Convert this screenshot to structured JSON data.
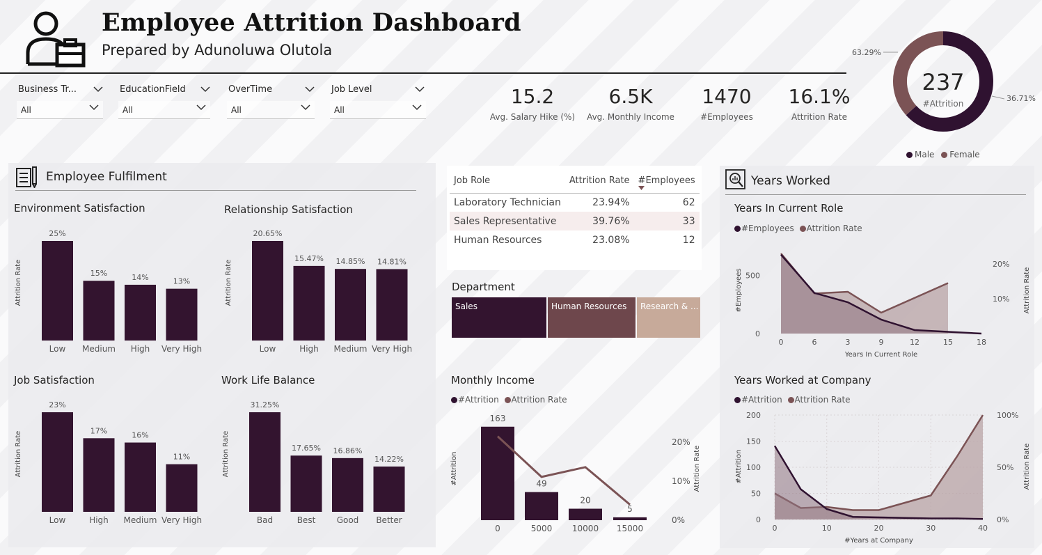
{
  "header": {
    "title": "Employee Attrition Dashboard",
    "subtitle": "Prepared by Adunoluwa Olutola"
  },
  "filters": [
    {
      "label": "Business Tr...",
      "value": "All"
    },
    {
      "label": "EducationField",
      "value": "All"
    },
    {
      "label": "OverTime",
      "value": "All"
    },
    {
      "label": "Job Level",
      "value": "All"
    }
  ],
  "kpis": [
    {
      "value": "15.2",
      "caption": "Avg. Salary Hike (%)"
    },
    {
      "value": "6.5K",
      "caption": "Avg. Monthly Income"
    },
    {
      "value": "1470",
      "caption": "#Employees"
    },
    {
      "value": "16.1%",
      "caption": "Attrition Rate"
    }
  ],
  "donut": {
    "center_value": "237",
    "center_label": "#Attrition",
    "legend": [
      {
        "name": "Male",
        "color": "#2f1230"
      },
      {
        "name": "Female",
        "color": "#7b5355"
      }
    ],
    "slices": [
      {
        "name": "Male",
        "value": 63.29,
        "label": "63.29%"
      },
      {
        "name": "Female",
        "value": 36.71,
        "label": "36.71%"
      }
    ]
  },
  "sections": {
    "fulfilment": "Employee Fulfilment",
    "years_worked": "Years Worked"
  },
  "colors": {
    "bar": "#33142f",
    "primary_line": "#2f1230",
    "secondary_line": "#7b5355",
    "area_primary": "#8f7582",
    "area_secondary": "#b8a3a6",
    "dept_research": "#c7aa9a"
  },
  "satisfaction_charts": [
    {
      "title": "Environment Satisfaction",
      "ylabel": "Attrition Rate",
      "categories": [
        "Low",
        "Medium",
        "High",
        "Very High"
      ],
      "values": [
        25,
        15,
        14,
        13
      ],
      "labels": [
        "25%",
        "15%",
        "14%",
        "13%"
      ]
    },
    {
      "title": "Relationship Satisfaction",
      "ylabel": "Attrition Rate",
      "categories": [
        "Low",
        "High",
        "Medium",
        "Very High"
      ],
      "values": [
        20.65,
        15.47,
        14.85,
        14.81
      ],
      "labels": [
        "20.65%",
        "15.47%",
        "14.85%",
        "14.81%"
      ]
    },
    {
      "title": "Job Satisfaction",
      "ylabel": "Attrition Rate",
      "categories": [
        "Low",
        "High",
        "Medium",
        "Very High"
      ],
      "values": [
        23,
        17,
        16,
        11
      ],
      "labels": [
        "23%",
        "17%",
        "16%",
        "11%"
      ]
    },
    {
      "title": "Work Life Balance",
      "ylabel": "Attrition Rate",
      "categories": [
        "Bad",
        "Best",
        "Good",
        "Better"
      ],
      "values": [
        31.25,
        17.65,
        16.86,
        14.22
      ],
      "labels": [
        "31.25%",
        "17.65%",
        "16.86%",
        "14.22%"
      ]
    }
  ],
  "job_role_table": {
    "headers": [
      "Job Role",
      "Attrition Rate",
      "#Employees"
    ],
    "rows": [
      {
        "role": "Laboratory Technician",
        "rate": "23.94%",
        "employees": "62"
      },
      {
        "role": "Sales Representative",
        "rate": "39.76%",
        "employees": "33"
      },
      {
        "role": "Human Resources",
        "rate": "23.08%",
        "employees": "12"
      }
    ]
  },
  "department": {
    "title": "Department",
    "items": [
      {
        "name": "Sales",
        "color": "#33142f"
      },
      {
        "name": "Human Resources",
        "color": "#6e474c"
      },
      {
        "name": "Research & ...",
        "color": "#c7aa9a"
      }
    ]
  },
  "chart_data": [
    {
      "type": "bar",
      "title": "Monthly Income",
      "legend": [
        "#Attrition",
        "Attrition Rate"
      ],
      "categories": [
        "0",
        "5000",
        "10000",
        "15000"
      ],
      "series": [
        {
          "name": "#Attrition",
          "values": [
            163,
            49,
            20,
            5
          ]
        },
        {
          "name": "Attrition Rate",
          "values": [
            21.5,
            11.1,
            13.6,
            4
          ]
        }
      ],
      "ylabel": "#Attrition",
      "y2label": "Attrition Rate",
      "y2_ticks": [
        "20%",
        "10%",
        "0%"
      ],
      "y2lim": [
        0,
        25
      ]
    },
    {
      "type": "area",
      "title": "Years In Current Role",
      "legend": [
        "#Employees",
        "Attrition Rate"
      ],
      "x_ticks": [
        "0",
        "6",
        "3",
        "9",
        "12",
        "15",
        "18"
      ],
      "x": [
        0,
        1,
        2,
        3,
        4,
        5,
        6
      ],
      "series": [
        {
          "name": "#Employees",
          "values": [
            680,
            350,
            270,
            120,
            30,
            15,
            0
          ]
        },
        {
          "name": "Attrition Rate",
          "values": [
            23,
            11.5,
            12,
            6,
            null,
            14.5,
            null
          ]
        }
      ],
      "xlabel": "Years In Current Role",
      "ylabel": "#Employees",
      "y2label": "Attrition Rate",
      "y_ticks": [
        "500",
        "0"
      ],
      "y2_ticks": [
        "20%",
        "10%"
      ],
      "ylim": [
        0,
        750
      ],
      "y2lim": [
        0,
        25
      ]
    },
    {
      "type": "area",
      "title": "Years Worked at Company",
      "legend": [
        "#Attrition",
        "Attrition Rate"
      ],
      "x_ticks": [
        "0",
        "10",
        "20",
        "30",
        "40"
      ],
      "x": [
        0,
        5,
        10,
        15,
        20,
        25,
        30,
        35,
        40
      ],
      "series": [
        {
          "name": "#Attrition",
          "values": [
            141,
            58,
            20,
            5,
            4,
            3,
            2,
            2,
            1
          ]
        },
        {
          "name": "Attrition Rate",
          "values": [
            25,
            11,
            12,
            9,
            9,
            16,
            23,
            60,
            100
          ]
        }
      ],
      "xlabel": "#Years at Company",
      "ylabel": "#Attrition",
      "y2label": "Attrition Rate",
      "y_ticks": [
        "200",
        "150",
        "100",
        "50",
        "0"
      ],
      "y2_ticks": [
        "100%",
        "50%",
        "0%"
      ],
      "ylim": [
        0,
        200
      ],
      "y2lim": [
        0,
        100
      ]
    }
  ]
}
